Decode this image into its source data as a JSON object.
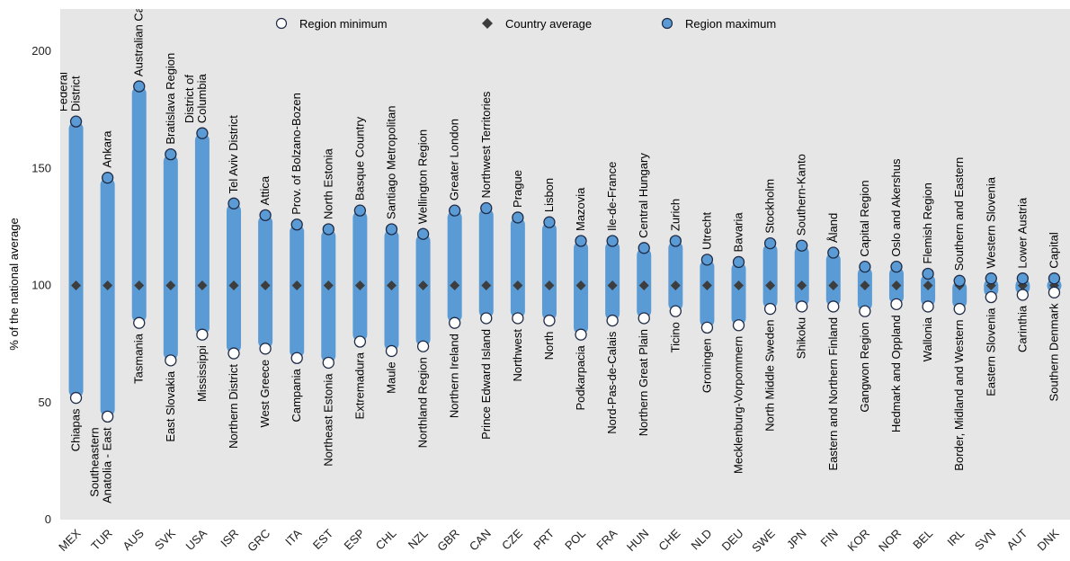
{
  "chart_data": {
    "type": "range-dot",
    "ylabel": "% of the national average",
    "ylim": [
      0,
      200
    ],
    "yticks": [
      0,
      50,
      100,
      150,
      200
    ],
    "country_average": 100,
    "legend": {
      "position": "top",
      "items": [
        {
          "name": "Region minimum",
          "marker": "open-circle"
        },
        {
          "name": "Country average",
          "marker": "diamond"
        },
        {
          "name": "Region maximum",
          "marker": "filled-circle"
        }
      ]
    },
    "colors": {
      "bar": "#5b9bd5",
      "background": "#e6e6e6",
      "marker_max_fill": "#5b9bd5",
      "marker_min_fill": "#ffffff",
      "marker_edge": "#1f2a44",
      "diamond": "#3d3d3d"
    },
    "categories": [
      {
        "code": "MEX",
        "min": 52,
        "max": 170,
        "min_label": "Chiapas",
        "max_label": "Federal District",
        "max_lines": [
          "Federal",
          "District"
        ]
      },
      {
        "code": "TUR",
        "min": 44,
        "max": 146,
        "min_label": "Southeastern Anatolia - East",
        "min_lines": [
          "Southeastern",
          "Anatolia - East"
        ],
        "max_label": "Ankara"
      },
      {
        "code": "AUS",
        "min": 84,
        "max": 185,
        "min_label": "Tasmania",
        "max_label": "Australian Capital Territory"
      },
      {
        "code": "SVK",
        "min": 68,
        "max": 156,
        "min_label": "East Slovakia",
        "max_label": "Bratislava Region"
      },
      {
        "code": "USA",
        "min": 79,
        "max": 165,
        "min_label": "Mississippi",
        "max_label": "District of Columbia",
        "max_lines": [
          "District of",
          "Columbia"
        ]
      },
      {
        "code": "ISR",
        "min": 71,
        "max": 135,
        "min_label": "Northern District",
        "max_label": "Tel Aviv District"
      },
      {
        "code": "GRC",
        "min": 73,
        "max": 130,
        "min_label": "West Greece",
        "max_label": "Attica"
      },
      {
        "code": "ITA",
        "min": 69,
        "max": 126,
        "min_label": "Campania",
        "max_label": "Prov. of Bolzano-Bozen"
      },
      {
        "code": "EST",
        "min": 67,
        "max": 124,
        "min_label": "Northeast Estonia",
        "max_label": "North Estonia"
      },
      {
        "code": "ESP",
        "min": 76,
        "max": 132,
        "min_label": "Extremadura",
        "max_label": "Basque Country"
      },
      {
        "code": "CHL",
        "min": 72,
        "max": 124,
        "min_label": "Maule",
        "max_label": "Santiago Metropolitan"
      },
      {
        "code": "NZL",
        "min": 74,
        "max": 122,
        "min_label": "Northland Region",
        "max_label": "Wellington Region"
      },
      {
        "code": "GBR",
        "min": 84,
        "max": 132,
        "min_label": "Northern Ireland",
        "max_label": "Greater London"
      },
      {
        "code": "CAN",
        "min": 86,
        "max": 133,
        "min_label": "Prince Edward Island",
        "max_label": "Northwest Territories"
      },
      {
        "code": "CZE",
        "min": 86,
        "max": 129,
        "min_label": "Northwest",
        "max_label": "Prague"
      },
      {
        "code": "PRT",
        "min": 85,
        "max": 127,
        "min_label": "North",
        "max_label": "Lisbon"
      },
      {
        "code": "POL",
        "min": 79,
        "max": 119,
        "min_label": "Podkarpacia",
        "max_label": "Mazovia"
      },
      {
        "code": "FRA",
        "min": 85,
        "max": 119,
        "min_label": "Nord-Pas-de-Calais",
        "max_label": "Ile-de-France"
      },
      {
        "code": "HUN",
        "min": 86,
        "max": 116,
        "min_label": "Northern Great Plain",
        "max_label": "Central Hungary"
      },
      {
        "code": "CHE",
        "min": 89,
        "max": 119,
        "min_label": "Ticino",
        "max_label": "Zurich"
      },
      {
        "code": "NLD",
        "min": 82,
        "max": 111,
        "min_label": "Groningen",
        "max_label": "Utrecht"
      },
      {
        "code": "DEU",
        "min": 83,
        "max": 110,
        "min_label": "Mecklenburg-Vorpommern",
        "max_label": "Bavaria"
      },
      {
        "code": "SWE",
        "min": 90,
        "max": 118,
        "min_label": "North Middle Sweden",
        "max_label": "Stockholm"
      },
      {
        "code": "JPN",
        "min": 91,
        "max": 117,
        "min_label": "Shikoku",
        "max_label": "Southern-Kanto"
      },
      {
        "code": "FIN",
        "min": 91,
        "max": 114,
        "min_label": "Eastern and Northern Finland",
        "max_label": "Åland"
      },
      {
        "code": "KOR",
        "min": 89,
        "max": 108,
        "min_label": "Gangwon Region",
        "max_label": "Capital Region"
      },
      {
        "code": "NOR",
        "min": 92,
        "max": 108,
        "min_label": "Hedmark and Oppland",
        "max_label": "Oslo and Akershus"
      },
      {
        "code": "BEL",
        "min": 91,
        "max": 105,
        "min_label": "Wallonia",
        "max_label": "Flemish Region"
      },
      {
        "code": "IRL",
        "min": 90,
        "max": 102,
        "min_label": "Border, Midland and Western",
        "max_label": "Southern and Eastern"
      },
      {
        "code": "SVN",
        "min": 95,
        "max": 103,
        "min_label": "Eastern Slovenia",
        "max_label": "Western Slovenia"
      },
      {
        "code": "AUT",
        "min": 96,
        "max": 103,
        "min_label": "Carinthia",
        "max_label": "Lower Austria"
      },
      {
        "code": "DNK",
        "min": 97,
        "max": 103,
        "min_label": "Southern Denmark",
        "max_label": "Capital"
      }
    ]
  }
}
